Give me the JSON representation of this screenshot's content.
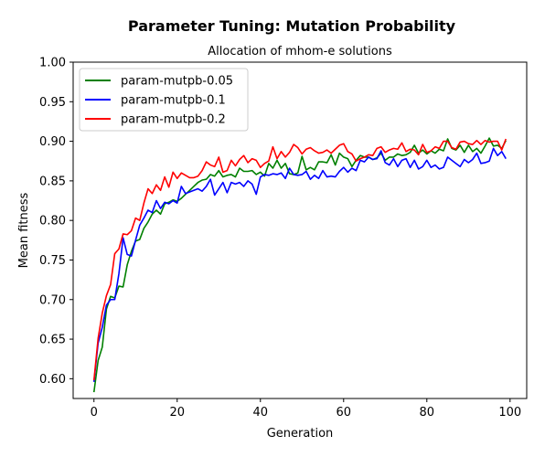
{
  "chart_data": {
    "type": "line",
    "title": "Parameter Tuning: Mutation Probability",
    "subtitle": "Allocation of mhom-e solutions",
    "xlabel": "Generation",
    "ylabel": "Mean fitness",
    "xlim": [
      -5,
      104
    ],
    "ylim": [
      0.575,
      1.0
    ],
    "xticks": [
      0,
      20,
      40,
      60,
      80,
      100
    ],
    "yticks": [
      0.6,
      0.65,
      0.7,
      0.75,
      0.8,
      0.85,
      0.9,
      0.95,
      1.0
    ],
    "xtick_labels": [
      "0",
      "20",
      "40",
      "60",
      "80",
      "100"
    ],
    "ytick_labels": [
      "0.60",
      "0.65",
      "0.70",
      "0.75",
      "0.80",
      "0.85",
      "0.90",
      "0.95",
      "1.00"
    ],
    "grid": false,
    "legend_position": "top-left",
    "series": [
      {
        "name": "param-mutpb-0.05",
        "color": "#008000",
        "values": [
          0.583,
          0.623,
          0.64,
          0.688,
          0.704,
          0.702,
          0.717,
          0.716,
          0.744,
          0.761,
          0.774,
          0.776,
          0.79,
          0.798,
          0.808,
          0.813,
          0.808,
          0.821,
          0.823,
          0.826,
          0.824,
          0.828,
          0.833,
          0.838,
          0.843,
          0.848,
          0.851,
          0.852,
          0.858,
          0.856,
          0.863,
          0.855,
          0.857,
          0.858,
          0.855,
          0.866,
          0.862,
          0.862,
          0.863,
          0.858,
          0.861,
          0.856,
          0.872,
          0.866,
          0.876,
          0.866,
          0.872,
          0.859,
          0.858,
          0.86,
          0.881,
          0.864,
          0.867,
          0.864,
          0.874,
          0.874,
          0.873,
          0.883,
          0.87,
          0.885,
          0.88,
          0.878,
          0.868,
          0.876,
          0.882,
          0.88,
          0.88,
          0.877,
          0.879,
          0.885,
          0.876,
          0.88,
          0.88,
          0.884,
          0.882,
          0.883,
          0.886,
          0.895,
          0.885,
          0.889,
          0.884,
          0.888,
          0.885,
          0.89,
          0.888,
          0.903,
          0.891,
          0.889,
          0.895,
          0.886,
          0.895,
          0.887,
          0.891,
          0.885,
          0.894,
          0.904,
          0.894,
          0.895,
          0.891,
          0.901
        ]
      },
      {
        "name": "param-mutpb-0.1",
        "color": "#0000ff",
        "values": [
          0.596,
          0.645,
          0.665,
          0.693,
          0.7,
          0.7,
          0.733,
          0.778,
          0.757,
          0.755,
          0.775,
          0.794,
          0.803,
          0.813,
          0.81,
          0.825,
          0.815,
          0.823,
          0.821,
          0.825,
          0.822,
          0.843,
          0.834,
          0.836,
          0.838,
          0.84,
          0.837,
          0.843,
          0.852,
          0.832,
          0.84,
          0.848,
          0.835,
          0.848,
          0.846,
          0.848,
          0.843,
          0.85,
          0.846,
          0.833,
          0.855,
          0.858,
          0.857,
          0.859,
          0.858,
          0.86,
          0.853,
          0.866,
          0.858,
          0.857,
          0.858,
          0.862,
          0.852,
          0.857,
          0.853,
          0.863,
          0.855,
          0.856,
          0.855,
          0.862,
          0.867,
          0.861,
          0.866,
          0.863,
          0.876,
          0.874,
          0.88,
          0.877,
          0.878,
          0.888,
          0.873,
          0.87,
          0.878,
          0.868,
          0.876,
          0.878,
          0.867,
          0.876,
          0.865,
          0.868,
          0.876,
          0.867,
          0.87,
          0.865,
          0.867,
          0.88,
          0.876,
          0.872,
          0.868,
          0.877,
          0.873,
          0.877,
          0.885,
          0.872,
          0.873,
          0.875,
          0.891,
          0.882,
          0.887,
          0.878
        ]
      },
      {
        "name": "param-mutpb-0.2",
        "color": "#ff0000",
        "values": [
          0.598,
          0.651,
          0.683,
          0.705,
          0.719,
          0.758,
          0.764,
          0.783,
          0.782,
          0.787,
          0.803,
          0.8,
          0.822,
          0.84,
          0.834,
          0.845,
          0.838,
          0.855,
          0.842,
          0.861,
          0.853,
          0.86,
          0.857,
          0.854,
          0.854,
          0.856,
          0.863,
          0.874,
          0.87,
          0.868,
          0.88,
          0.861,
          0.863,
          0.876,
          0.869,
          0.877,
          0.882,
          0.873,
          0.878,
          0.876,
          0.867,
          0.872,
          0.875,
          0.893,
          0.878,
          0.887,
          0.88,
          0.886,
          0.896,
          0.892,
          0.884,
          0.89,
          0.892,
          0.888,
          0.885,
          0.886,
          0.889,
          0.885,
          0.89,
          0.895,
          0.897,
          0.887,
          0.884,
          0.875,
          0.878,
          0.88,
          0.883,
          0.882,
          0.891,
          0.893,
          0.886,
          0.889,
          0.891,
          0.89,
          0.898,
          0.887,
          0.89,
          0.889,
          0.883,
          0.896,
          0.886,
          0.888,
          0.893,
          0.891,
          0.9,
          0.9,
          0.892,
          0.89,
          0.899,
          0.9,
          0.897,
          0.896,
          0.901,
          0.896,
          0.901,
          0.899,
          0.9,
          0.9,
          0.889,
          0.903
        ]
      }
    ]
  }
}
